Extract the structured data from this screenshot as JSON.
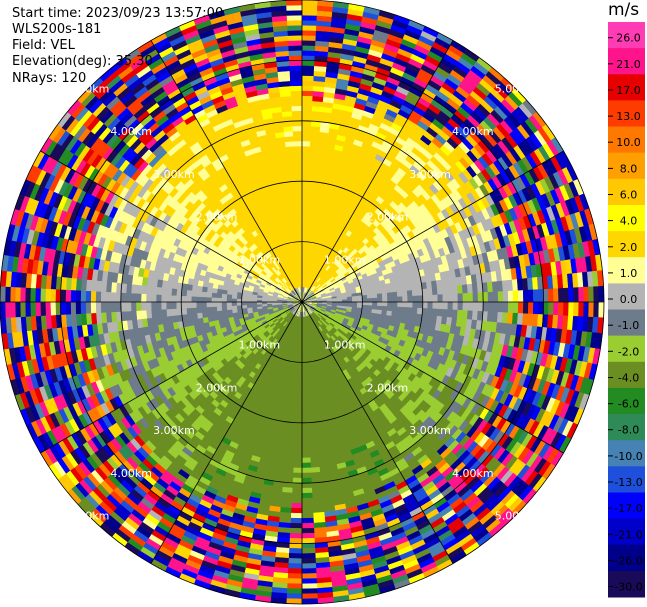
{
  "header": {
    "start_time": "Start time: 2023/09/23 13:57:00",
    "instrument": "WLS200s-181",
    "field": "Field: VEL",
    "elevation": "Elevation(deg): 35.30",
    "nrays": "NRays: 120"
  },
  "colorbar": {
    "unit": "m/s",
    "ticks": [
      "26.0",
      "21.0",
      "17.0",
      "13.0",
      "10.0",
      "8.0",
      "6.0",
      "4.0",
      "2.0",
      "1.0",
      "0.0",
      "-1.0",
      "-2.0",
      "-4.0",
      "-6.0",
      "-8.0",
      "-10.0",
      "-13.0",
      "-17.0",
      "-21.0",
      "-26.0",
      "-30.0"
    ],
    "colors": [
      "#ff3cb4",
      "#ff148c",
      "#e60000",
      "#ff3c00",
      "#ff7800",
      "#ffa000",
      "#ffc800",
      "#ffff00",
      "#ffd700",
      "#ffff96",
      "#b4b4b4",
      "#6e7b8b",
      "#9acd32",
      "#6b8e23",
      "#228b22",
      "#2e8b57",
      "#4682b4",
      "#1e50dc",
      "#0000ff",
      "#0000c8",
      "#00008b",
      "#1a0a5a"
    ]
  },
  "chart_data": {
    "type": "heatmap",
    "title": "",
    "projection": "polar-ppi",
    "rays": 120,
    "range_rings_km": [
      1.0,
      2.0,
      3.0,
      4.0,
      5.0
    ],
    "max_range_km": 5.0,
    "ring_labels": [
      "1.00km",
      "2.00km",
      "3.00km",
      "4.00km",
      "5.00km"
    ],
    "azimuth_lines_deg": [
      0,
      30,
      60,
      90,
      120,
      150,
      180,
      210,
      240,
      270,
      300,
      330
    ],
    "field": "VEL",
    "unit": "m/s",
    "color_scale_min": -30.0,
    "color_scale_max": 26.0,
    "description_of_pattern": [
      {
        "region": "north, 0.3-3 km",
        "velocity_ms": 2.0
      },
      {
        "region": "south, 0.3-3 km",
        "velocity_ms": -2.0
      },
      {
        "region": "east/west band, 1-2.6 km",
        "velocity_ms": -1.0
      },
      {
        "region": "beyond ~3.3 km",
        "velocity_ms": "noise (mixed)"
      }
    ]
  }
}
